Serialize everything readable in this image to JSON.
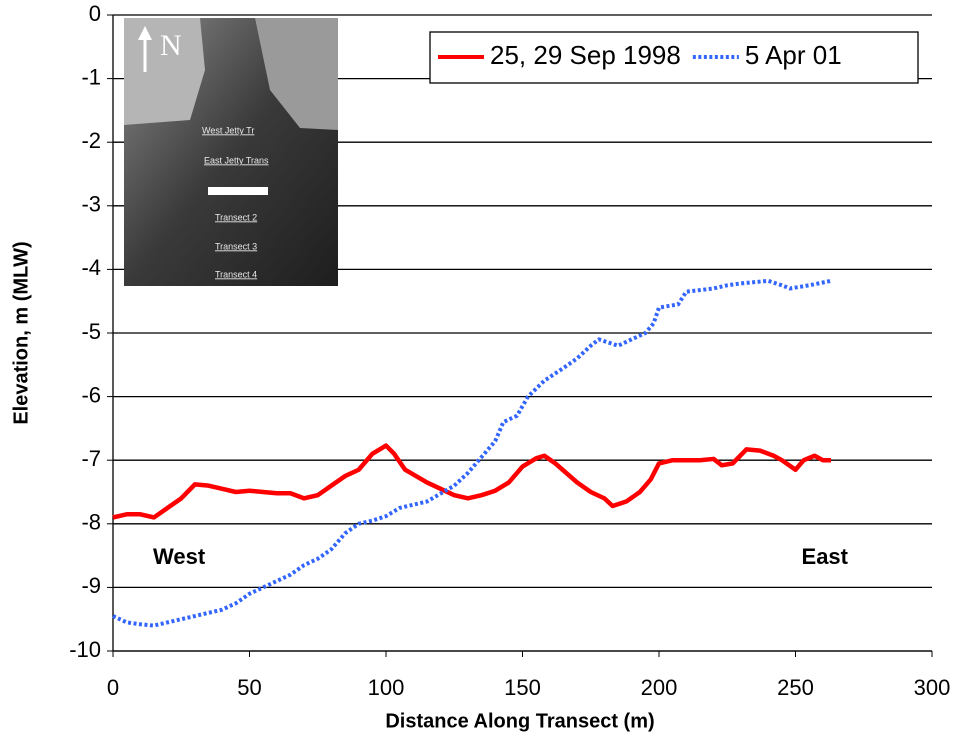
{
  "chart_data": {
    "type": "line",
    "xlabel": "Distance Along Transect (m)",
    "ylabel": "Elevation, m (MLW)",
    "xlim": [
      0,
      300
    ],
    "xticks": [
      0,
      50,
      100,
      150,
      200,
      250,
      300
    ],
    "ylim": [
      -10,
      0
    ],
    "yticks": [
      0,
      -1,
      -2,
      -3,
      -4,
      -5,
      -6,
      -7,
      -8,
      -9,
      -10
    ],
    "grid": true,
    "legend": "upper right",
    "annotations": [
      "West",
      "East"
    ],
    "inset_labels": [
      "N",
      "West Jetty Tr",
      "East Jetty Trans",
      "Transect 2",
      "Transect 3",
      "Transect 4"
    ],
    "series": [
      {
        "name": "25, 29 Sep 1998",
        "color": "#ff0000",
        "style": "solid",
        "x": [
          0,
          5,
          10,
          15,
          20,
          25,
          30,
          35,
          40,
          45,
          50,
          55,
          60,
          65,
          70,
          75,
          80,
          85,
          90,
          95,
          100,
          103,
          107,
          115,
          120,
          125,
          130,
          135,
          140,
          145,
          150,
          155,
          158,
          162,
          170,
          175,
          180,
          183,
          188,
          193,
          197,
          200,
          205,
          210,
          215,
          220,
          223,
          227,
          232,
          237,
          242,
          245,
          250,
          253,
          257,
          260,
          263
        ],
        "values": [
          -7.9,
          -7.85,
          -7.85,
          -7.9,
          -7.75,
          -7.6,
          -7.38,
          -7.4,
          -7.45,
          -7.5,
          -7.48,
          -7.5,
          -7.52,
          -7.52,
          -7.6,
          -7.55,
          -7.4,
          -7.25,
          -7.15,
          -6.9,
          -6.77,
          -6.9,
          -7.15,
          -7.35,
          -7.45,
          -7.55,
          -7.6,
          -7.55,
          -7.48,
          -7.35,
          -7.1,
          -6.97,
          -6.93,
          -7.05,
          -7.35,
          -7.5,
          -7.6,
          -7.72,
          -7.65,
          -7.5,
          -7.3,
          -7.05,
          -7.0,
          -7.0,
          -7.0,
          -6.98,
          -7.08,
          -7.05,
          -6.83,
          -6.85,
          -6.93,
          -7.0,
          -7.15,
          -7.0,
          -6.93,
          -7.0,
          -7.0
        ]
      },
      {
        "name": "5 Apr 01",
        "color": "#3366ff",
        "style": "dotted",
        "x": [
          0,
          5,
          10,
          15,
          20,
          30,
          40,
          45,
          50,
          55,
          60,
          65,
          70,
          75,
          80,
          85,
          90,
          95,
          100,
          105,
          115,
          125,
          130,
          135,
          140,
          143,
          148,
          152,
          158,
          165,
          170,
          175,
          178,
          185,
          190,
          195,
          198,
          200,
          207,
          210,
          220,
          225,
          230,
          240,
          245,
          248,
          255,
          263
        ],
        "values": [
          -9.45,
          -9.55,
          -9.58,
          -9.6,
          -9.55,
          -9.45,
          -9.35,
          -9.25,
          -9.1,
          -9.0,
          -8.9,
          -8.8,
          -8.65,
          -8.55,
          -8.4,
          -8.15,
          -8.0,
          -7.95,
          -7.88,
          -7.75,
          -7.65,
          -7.4,
          -7.2,
          -6.95,
          -6.7,
          -6.4,
          -6.3,
          -6.0,
          -5.75,
          -5.55,
          -5.4,
          -5.2,
          -5.1,
          -5.2,
          -5.1,
          -5.0,
          -4.85,
          -4.6,
          -4.55,
          -4.35,
          -4.3,
          -4.25,
          -4.22,
          -4.18,
          -4.25,
          -4.3,
          -4.25,
          -4.18
        ]
      }
    ]
  }
}
